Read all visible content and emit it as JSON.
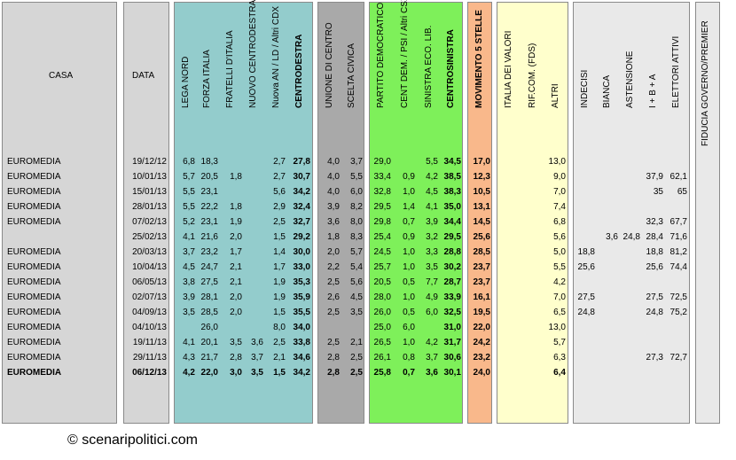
{
  "colors": {
    "grey": "#d6d6d6",
    "teal": "#93cccc",
    "darkgrey": "#a9a9a9",
    "green": "#7ef05a",
    "orange": "#f9b88b",
    "cream": "#ffffcc",
    "light": "#e9e9e9"
  },
  "headers": {
    "casa": "CASA",
    "data": "DATA",
    "lega": "LEGA NORD",
    "fi": "FORZA ITALIA",
    "fdi": "FRATELLI D'ITALIA",
    "ncd": "NUOVO CENTRODESTRA",
    "an": "Nuova AN / LD / Altri CDX",
    "cdx": "CENTRODESTRA",
    "udc": "UNIONE DI CENTRO",
    "sc": "SCELTA CIVICA",
    "pd": "PARTITO DEMOCRATICO",
    "cd": "CENT DEM. / PSI / Altri CSX",
    "sel": "SINISTRA ECO. LIB.",
    "csx": "CENTROSINISTRA",
    "m5s": "MOVIMENTO 5 STELLE",
    "idv": "ITALIA DEI VALORI",
    "rc": "RIF.COM. (FDS)",
    "altri": "ALTRI",
    "ind": "INDECISI",
    "bianca": "BIANCA",
    "ast": "ASTENSIONE",
    "ibA": "I + B + A",
    "ea": "ELETTORI ATTIVI",
    "fid": "FIDUCIA GOVERNO/PREMIER"
  },
  "chart_data": {
    "type": "table",
    "columns": [
      "casa",
      "data",
      "lega",
      "fi",
      "fdi",
      "ncd",
      "an",
      "cdx",
      "udc",
      "sc",
      "pd",
      "cd",
      "sel",
      "csx",
      "m5s",
      "idv",
      "rc",
      "altri",
      "ind",
      "bianca",
      "ast",
      "iba",
      "ea",
      "fid"
    ],
    "rows": [
      [
        "EUROMEDIA",
        "19/12/12",
        "6,8",
        "18,3",
        "",
        "",
        "2,7",
        "27,8",
        "4,0",
        "3,7",
        "29,0",
        "",
        "5,5",
        "34,5",
        "17,0",
        "",
        "",
        "13,0",
        "",
        "",
        "",
        "",
        "",
        ""
      ],
      [
        "EUROMEDIA",
        "10/01/13",
        "5,7",
        "20,5",
        "1,8",
        "",
        "2,7",
        "30,7",
        "4,0",
        "5,5",
        "33,4",
        "0,9",
        "4,2",
        "38,5",
        "12,3",
        "",
        "",
        "9,0",
        "",
        "",
        "",
        "37,9",
        "62,1",
        ""
      ],
      [
        "EUROMEDIA",
        "15/01/13",
        "5,5",
        "23,1",
        "",
        "",
        "5,6",
        "34,2",
        "4,0",
        "6,0",
        "32,8",
        "1,0",
        "4,5",
        "38,3",
        "10,5",
        "",
        "",
        "7,0",
        "",
        "",
        "",
        "35",
        "65",
        ""
      ],
      [
        "EUROMEDIA",
        "28/01/13",
        "5,5",
        "22,2",
        "1,8",
        "",
        "2,9",
        "32,4",
        "3,9",
        "8,2",
        "29,5",
        "1,4",
        "4,1",
        "35,0",
        "13,1",
        "",
        "",
        "7,4",
        "",
        "",
        "",
        "",
        "",
        ""
      ],
      [
        "EUROMEDIA",
        "07/02/13",
        "5,2",
        "23,1",
        "1,9",
        "",
        "2,5",
        "32,7",
        "3,6",
        "8,0",
        "29,8",
        "0,7",
        "3,9",
        "34,4",
        "14,5",
        "",
        "",
        "6,8",
        "",
        "",
        "",
        "32,3",
        "67,7",
        ""
      ],
      [
        "",
        "25/02/13",
        "4,1",
        "21,6",
        "2,0",
        "",
        "1,5",
        "29,2",
        "1,8",
        "8,3",
        "25,4",
        "0,9",
        "3,2",
        "29,5",
        "25,6",
        "",
        "",
        "5,6",
        "",
        "3,6",
        "24,8",
        "28,4",
        "71,6",
        ""
      ],
      [
        "EUROMEDIA",
        "20/03/13",
        "3,7",
        "23,2",
        "1,7",
        "",
        "1,4",
        "30,0",
        "2,0",
        "5,7",
        "24,5",
        "1,0",
        "3,3",
        "28,8",
        "28,5",
        "",
        "",
        "5,0",
        "18,8",
        "",
        "",
        "18,8",
        "81,2",
        ""
      ],
      [
        "EUROMEDIA",
        "10/04/13",
        "4,5",
        "24,7",
        "2,1",
        "",
        "1,7",
        "33,0",
        "2,2",
        "5,4",
        "25,7",
        "1,0",
        "3,5",
        "30,2",
        "23,7",
        "",
        "",
        "5,5",
        "25,6",
        "",
        "",
        "25,6",
        "74,4",
        ""
      ],
      [
        "EUROMEDIA",
        "06/05/13",
        "3,8",
        "27,5",
        "2,1",
        "",
        "1,9",
        "35,3",
        "2,5",
        "5,6",
        "20,5",
        "0,5",
        "7,7",
        "28,7",
        "23,7",
        "",
        "",
        "4,2",
        "",
        "",
        "",
        "",
        "",
        ""
      ],
      [
        "EUROMEDIA",
        "02/07/13",
        "3,9",
        "28,1",
        "2,0",
        "",
        "1,9",
        "35,9",
        "2,6",
        "4,5",
        "28,0",
        "1,0",
        "4,9",
        "33,9",
        "16,1",
        "",
        "",
        "7,0",
        "27,5",
        "",
        "",
        "27,5",
        "72,5",
        ""
      ],
      [
        "EUROMEDIA",
        "04/09/13",
        "3,5",
        "28,5",
        "2,0",
        "",
        "1,5",
        "35,5",
        "2,5",
        "3,5",
        "26,0",
        "0,5",
        "6,0",
        "32,5",
        "19,5",
        "",
        "",
        "6,5",
        "24,8",
        "",
        "",
        "24,8",
        "75,2",
        ""
      ],
      [
        "EUROMEDIA",
        "04/10/13",
        "",
        "26,0",
        "",
        "",
        "8,0",
        "34,0",
        "",
        "",
        "25,0",
        "6,0",
        "",
        "31,0",
        "22,0",
        "",
        "",
        "13,0",
        "",
        "",
        "",
        "",
        "",
        ""
      ],
      [
        "EUROMEDIA",
        "19/11/13",
        "4,1",
        "20,1",
        "3,5",
        "3,6",
        "2,5",
        "33,8",
        "2,5",
        "2,1",
        "26,5",
        "1,0",
        "4,2",
        "31,7",
        "24,2",
        "",
        "",
        "5,7",
        "",
        "",
        "",
        "",
        "",
        ""
      ],
      [
        "EUROMEDIA",
        "29/11/13",
        "4,3",
        "21,7",
        "2,8",
        "3,7",
        "2,1",
        "34,6",
        "2,8",
        "2,5",
        "26,1",
        "0,8",
        "3,7",
        "30,6",
        "23,2",
        "",
        "",
        "6,3",
        "",
        "",
        "",
        "27,3",
        "72,7",
        ""
      ],
      [
        "EUROMEDIA",
        "06/12/13",
        "4,2",
        "22,0",
        "3,0",
        "3,5",
        "1,5",
        "34,2",
        "2,8",
        "2,5",
        "25,8",
        "0,7",
        "3,6",
        "30,1",
        "24,0",
        "",
        "",
        "6,4",
        "",
        "",
        "",
        "",
        "",
        ""
      ]
    ]
  },
  "footer": "© scenaripolitici.com"
}
